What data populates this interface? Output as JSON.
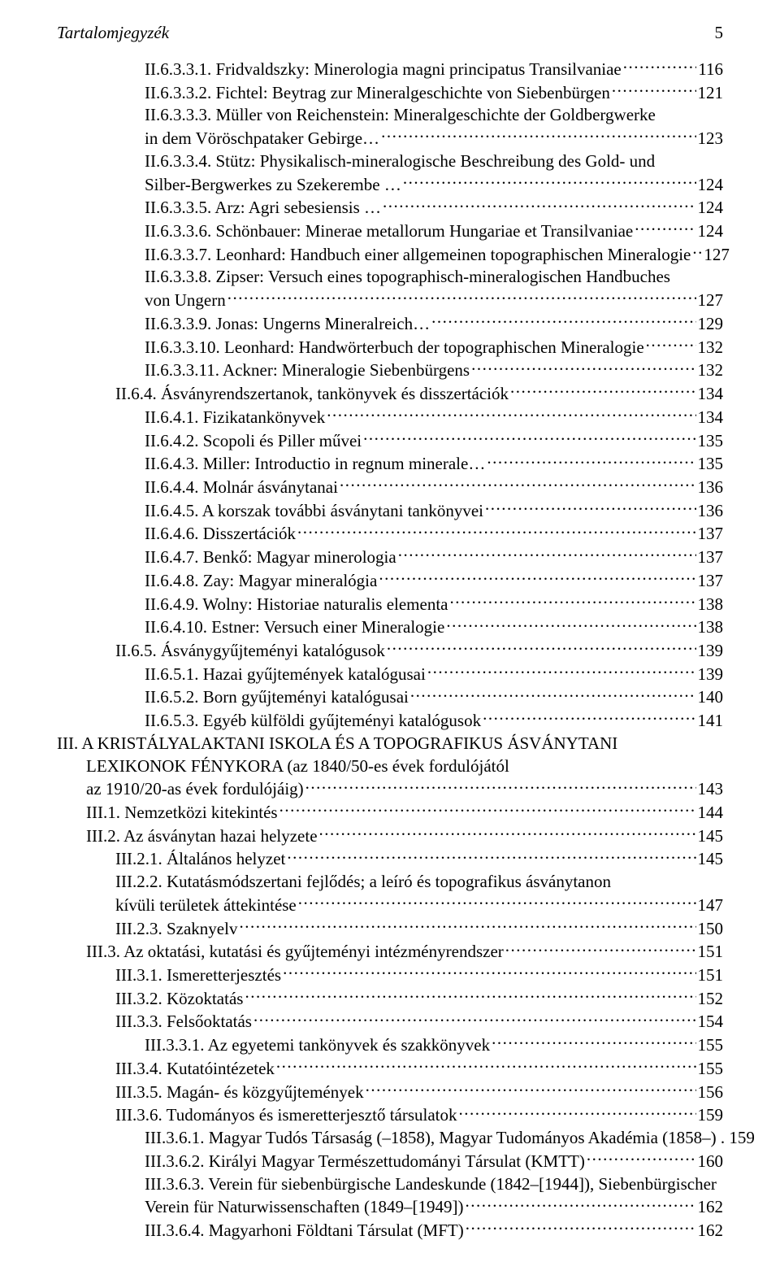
{
  "header": {
    "running_title": "Tartalomjegyzék",
    "page_number": "5"
  },
  "toc": [
    {
      "indent": 3,
      "text": "II.6.3.3.1. Fridvaldszky: Minerologia magni principatus Transilvaniae",
      "page": "116"
    },
    {
      "indent": 3,
      "text": "II.6.3.3.2. Fichtel: Beytrag zur Mineralgeschichte von Siebenbürgen",
      "page": "121"
    },
    {
      "indent": 3,
      "text": "II.6.3.3.3. Müller von Reichenstein: Mineralgeschichte der Goldbergwerke",
      "nopage": true
    },
    {
      "indent": 3,
      "contText": "in dem Vöröschpataker Gebirge…",
      "page": "123"
    },
    {
      "indent": 3,
      "text": "II.6.3.3.4. Stütz: Physikalisch-mineralogische Beschreibung des Gold- und",
      "nopage": true
    },
    {
      "indent": 3,
      "contText": "Silber-Bergwerkes zu Szekerembe …",
      "page": "124"
    },
    {
      "indent": 3,
      "text": "II.6.3.3.5. Arz: Agri sebesiensis …",
      "page": "124"
    },
    {
      "indent": 3,
      "text": "II.6.3.3.6. Schönbauer: Minerae metallorum Hungariae et Transilvaniae",
      "page": "124"
    },
    {
      "indent": 3,
      "text": "II.6.3.3.7. Leonhard: Handbuch einer allgemeinen topographischen Mineralogie",
      "page": "127"
    },
    {
      "indent": 3,
      "text": "II.6.3.3.8. Zipser: Versuch eines topographisch-mineralogischen Handbuches",
      "nopage": true
    },
    {
      "indent": 3,
      "contText": "von Ungern",
      "page": "127"
    },
    {
      "indent": 3,
      "text": "II.6.3.3.9. Jonas: Ungerns Mineralreich…",
      "page": "129"
    },
    {
      "indent": 3,
      "text": "II.6.3.3.10. Leonhard: Handwörterbuch der topographischen Mineralogie",
      "page": "132"
    },
    {
      "indent": 3,
      "text": "II.6.3.3.11. Ackner: Mineralogie Siebenbürgens",
      "page": "132"
    },
    {
      "indent": 2,
      "text": "II.6.4. Ásványrendszertanok, tankönyvek és disszertációk",
      "page": "134"
    },
    {
      "indent": 3,
      "text": "II.6.4.1. Fizikatankönyvek",
      "page": "134"
    },
    {
      "indent": 3,
      "text": "II.6.4.2. Scopoli és Piller művei",
      "page": "135"
    },
    {
      "indent": 3,
      "text": "II.6.4.3. Miller: Introductio in regnum minerale…",
      "page": "135"
    },
    {
      "indent": 3,
      "text": "II.6.4.4. Molnár ásványtanai",
      "page": "136"
    },
    {
      "indent": 3,
      "text": "II.6.4.5. A korszak további ásványtani tankönyvei",
      "page": "136"
    },
    {
      "indent": 3,
      "text": "II.6.4.6. Disszertációk",
      "page": "137"
    },
    {
      "indent": 3,
      "text": "II.6.4.7. Benkő: Magyar minerologia",
      "page": "137"
    },
    {
      "indent": 3,
      "text": "II.6.4.8. Zay: Magyar mineralógia",
      "page": "137"
    },
    {
      "indent": 3,
      "text": "II.6.4.9. Wolny: Historiae naturalis elementa",
      "page": "138"
    },
    {
      "indent": 3,
      "text": "II.6.4.10. Estner: Versuch einer Mineralogie",
      "page": "138"
    },
    {
      "indent": 2,
      "text": "II.6.5. Ásványgyűjteményi katalógusok",
      "page": "139"
    },
    {
      "indent": 3,
      "text": "II.6.5.1. Hazai gyűjtemények katalógusai",
      "page": "139"
    },
    {
      "indent": 3,
      "text": "II.6.5.2. Born gyűjteményi katalógusai",
      "page": "140"
    },
    {
      "indent": 3,
      "text": "II.6.5.3. Egyéb külföldi gyűjteményi katalógusok",
      "page": "141"
    },
    {
      "indent": 0,
      "text": "III. A KRISTÁLYALAKTANI ISKOLA ÉS A TOPOGRAFIKUS ÁSVÁNYTANI",
      "nopage": true
    },
    {
      "indent": 1,
      "contText": "LEXIKONOK FÉNYKORA (az 1840/50-es évek fordulójától",
      "nopage": true
    },
    {
      "indent": 1,
      "contText": "az 1910/20-as évek fordulójáig)",
      "page": "143"
    },
    {
      "indent": 1,
      "text": "III.1. Nemzetközi kitekintés",
      "page": "144"
    },
    {
      "indent": 1,
      "text": "III.2. Az ásványtan hazai helyzete",
      "page": "145"
    },
    {
      "indent": 2,
      "text": "III.2.1. Általános helyzet",
      "page": "145"
    },
    {
      "indent": 2,
      "text": "III.2.2. Kutatásmódszertani fejlődés; a leíró és topografikus ásványtanon",
      "nopage": true
    },
    {
      "indent": 2,
      "contText": "kívüli területek áttekintése",
      "page": "147"
    },
    {
      "indent": 2,
      "text": "III.2.3. Szaknyelv",
      "page": "150"
    },
    {
      "indent": 1,
      "text": "III.3. Az oktatási, kutatási és gyűjteményi intézményrendszer",
      "page": "151"
    },
    {
      "indent": 2,
      "text": "III.3.1. Ismeretterjesztés",
      "page": "151"
    },
    {
      "indent": 2,
      "text": "III.3.2. Közoktatás",
      "page": "152"
    },
    {
      "indent": 2,
      "text": "III.3.3. Felsőoktatás",
      "page": "154"
    },
    {
      "indent": 3,
      "text": "III.3.3.1. Az egyetemi tankönyvek és szakkönyvek",
      "page": "155"
    },
    {
      "indent": 2,
      "text": "III.3.4. Kutatóintézetek",
      "page": "155"
    },
    {
      "indent": 2,
      "text": "III.3.5. Magán- és közgyűjtemények",
      "page": "156"
    },
    {
      "indent": 2,
      "text": "III.3.6. Tudományos és ismeretterjesztő társulatok",
      "page": "159"
    },
    {
      "indent": 3,
      "text": "III.3.6.1. Magyar Tudós Társaság (–1858), Magyar Tudományos Akadémia (1858–) .",
      "page": "159",
      "nodots": true
    },
    {
      "indent": 3,
      "text": "III.3.6.2. Királyi Magyar Természettudományi Társulat (KMTT)",
      "page": "160"
    },
    {
      "indent": 3,
      "text": "III.3.6.3. Verein für siebenbürgische Landeskunde (1842–[1944]), Siebenbürgischer",
      "nopage": true
    },
    {
      "indent": 3,
      "contText": "Verein für Naturwissenschaften (1849–[1949])",
      "page": "162"
    },
    {
      "indent": 3,
      "text": "III.3.6.4. Magyarhoni Földtani Társulat (MFT)",
      "page": "162"
    }
  ]
}
